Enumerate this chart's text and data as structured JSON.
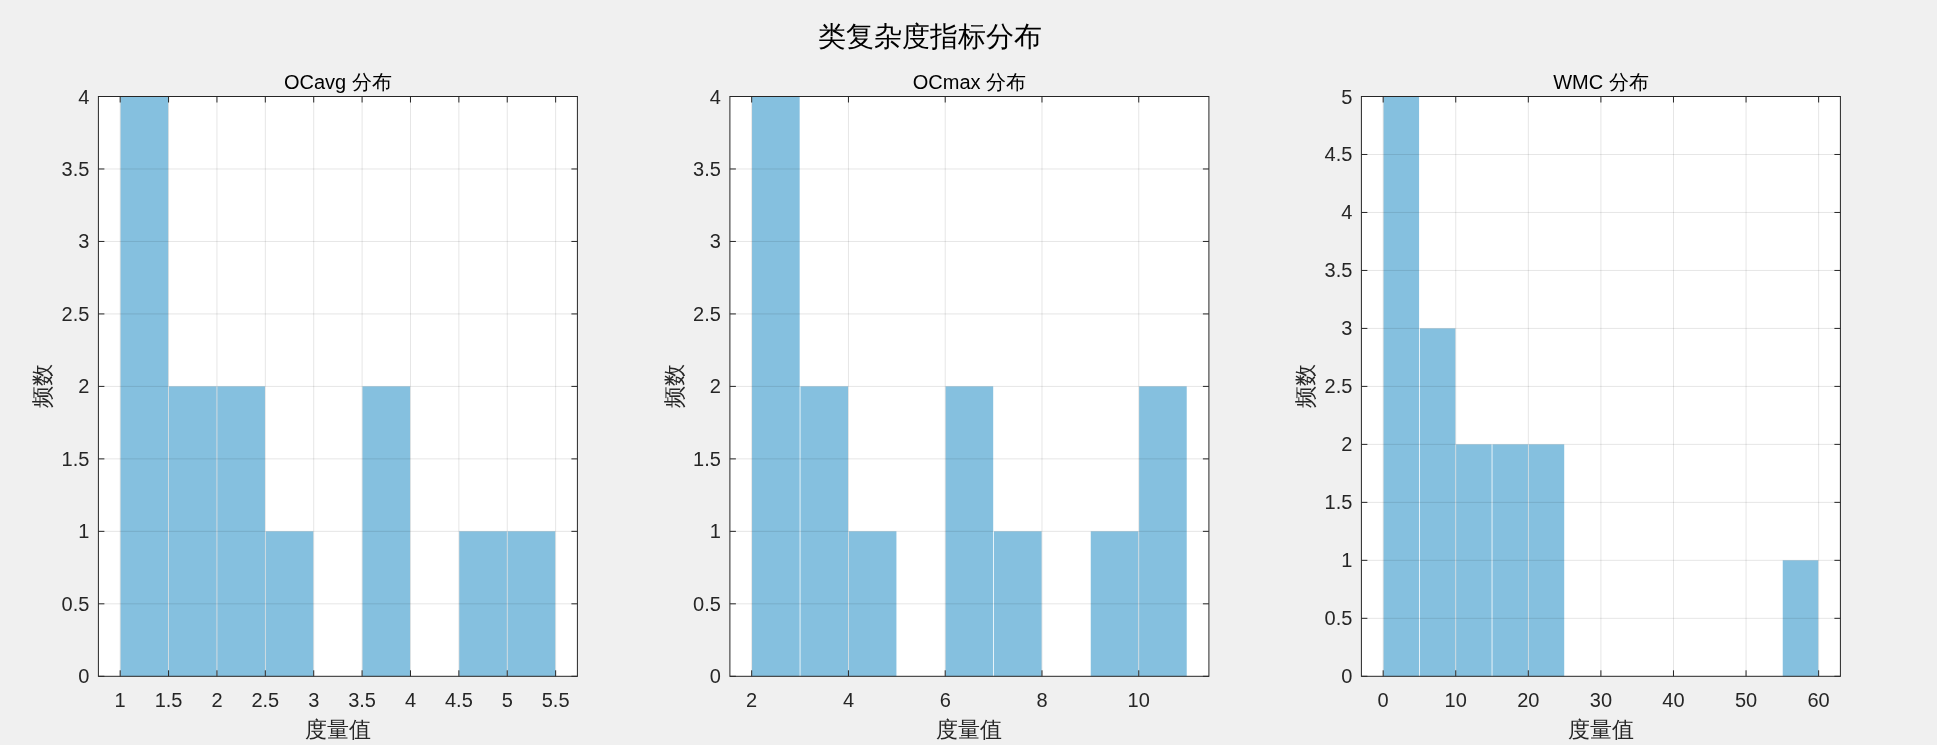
{
  "chart_data": [
    {
      "type": "histogram",
      "title": "OCavg 分布",
      "xlabel": "度量值",
      "ylabel": "频数",
      "annotations": [
        "类复杂度指标分布"
      ],
      "bins": [
        1,
        1.5,
        2,
        2.5,
        3,
        3.5,
        4,
        4.5,
        5,
        5.5
      ],
      "values": [
        4,
        2,
        2,
        1,
        0,
        2,
        0,
        1,
        1
      ],
      "color": "#85c0df",
      "xlim": [
        0.775,
        5.725
      ],
      "xticks": [
        1,
        1.5,
        2,
        2.5,
        3,
        3.5,
        4,
        4.5,
        5,
        5.5
      ],
      "ylim": [
        0,
        4
      ],
      "yticks": [
        0,
        0.5,
        1,
        1.5,
        2,
        2.5,
        3,
        3.5,
        4
      ],
      "grid": true
    },
    {
      "type": "histogram",
      "title": "OCmax 分布",
      "xlabel": "度量值",
      "ylabel": "频数",
      "bins": [
        2,
        3,
        4,
        5,
        6,
        7,
        8,
        9,
        10,
        11
      ],
      "values": [
        4,
        2,
        1,
        0,
        2,
        1,
        0,
        1,
        2
      ],
      "color": "#85c0df",
      "xlim": [
        1.55,
        11.45
      ],
      "xticks": [
        2,
        4,
        6,
        8,
        10
      ],
      "ylim": [
        0,
        4
      ],
      "yticks": [
        0,
        0.5,
        1,
        1.5,
        2,
        2.5,
        3,
        3.5,
        4
      ],
      "grid": true
    },
    {
      "type": "histogram",
      "title": "WMC 分布",
      "xlabel": "度量值",
      "ylabel": "频数",
      "bins": [
        0,
        5,
        10,
        15,
        20,
        25,
        30,
        35,
        40,
        45,
        50,
        55,
        60
      ],
      "values": [
        5,
        3,
        2,
        2,
        2,
        0,
        0,
        0,
        0,
        0,
        0,
        1
      ],
      "color": "#85c0df",
      "xlim": [
        -3,
        63
      ],
      "xticks": [
        0,
        10,
        20,
        30,
        40,
        50,
        60
      ],
      "ylim": [
        0,
        5
      ],
      "yticks": [
        0,
        0.5,
        1,
        1.5,
        2,
        2.5,
        3,
        3.5,
        4,
        4.5,
        5
      ],
      "grid": true
    }
  ]
}
